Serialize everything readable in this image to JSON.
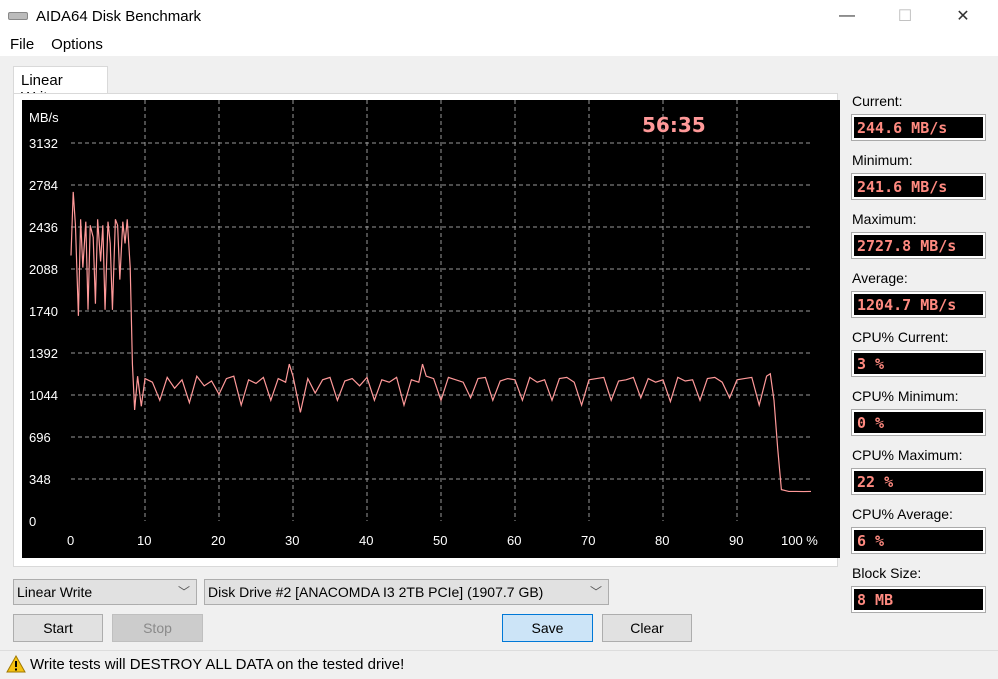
{
  "window": {
    "title": "AIDA64 Disk Benchmark",
    "minimize": "—",
    "maximize": "☐",
    "close": "✕"
  },
  "menu": [
    "File",
    "Options"
  ],
  "tab": "Linear Write",
  "chart_data": {
    "type": "line",
    "ylabel": "MB/s",
    "timer": "56:35",
    "ylim": [
      0,
      3132
    ],
    "xlim": [
      0,
      100
    ],
    "yticks": [
      "0",
      "348",
      "696",
      "1044",
      "1392",
      "1740",
      "2088",
      "2436",
      "2784",
      "3132"
    ],
    "xticks": [
      "0",
      "10",
      "20",
      "30",
      "40",
      "50",
      "60",
      "70",
      "80",
      "90",
      "100 %"
    ],
    "grid": true,
    "line_color": "#ff9999",
    "x": [
      0,
      0.3,
      0.6,
      1,
      1.3,
      1.6,
      2,
      2.3,
      2.6,
      3,
      3.3,
      3.6,
      4,
      4.3,
      4.6,
      5,
      5.3,
      5.6,
      6,
      6.3,
      6.6,
      7,
      7.3,
      7.6,
      8,
      8.3,
      8.6,
      9,
      9.5,
      10,
      11,
      12,
      13,
      14,
      15,
      16,
      17,
      18,
      19,
      20,
      21,
      22,
      23,
      24,
      25,
      26,
      27,
      28,
      29,
      29.5,
      30,
      31,
      32,
      33,
      34,
      35,
      36,
      37,
      38,
      39,
      40,
      41,
      42,
      43,
      44,
      45,
      46,
      47,
      47.5,
      48,
      49,
      50,
      51,
      52,
      53,
      54,
      55,
      56,
      57,
      58,
      59,
      60,
      61,
      62,
      63,
      64,
      65,
      66,
      67,
      68,
      69,
      70,
      71,
      72,
      73,
      74,
      75,
      76,
      77,
      78,
      79,
      80,
      81,
      82,
      83,
      84,
      85,
      86,
      87,
      88,
      89,
      90,
      91,
      92,
      93,
      94,
      94.5,
      95,
      95.5,
      96,
      97,
      98,
      99,
      100
    ],
    "y": [
      2200,
      2727,
      2450,
      1700,
      2500,
      2100,
      2480,
      1750,
      2450,
      2350,
      1800,
      2500,
      2150,
      2450,
      1750,
      2480,
      2300,
      1750,
      2500,
      2450,
      2000,
      2480,
      2300,
      2500,
      2100,
      1300,
      920,
      1200,
      950,
      1180,
      1150,
      1000,
      1190,
      1100,
      1170,
      980,
      1200,
      1120,
      1160,
      1050,
      1180,
      1200,
      960,
      1170,
      1140,
      1190,
      1000,
      1180,
      1150,
      1300,
      1200,
      900,
      1180,
      1060,
      1170,
      1190,
      1000,
      1160,
      1180,
      1120,
      1190,
      1000,
      1170,
      1150,
      1190,
      960,
      1170,
      1150,
      1300,
      1200,
      1180,
      1000,
      1190,
      1170,
      1150,
      1020,
      1180,
      1190,
      1000,
      1160,
      1180,
      1170,
      1000,
      1190,
      1150,
      1170,
      1000,
      1180,
      1190,
      1150,
      960,
      1170,
      1180,
      1190,
      1000,
      1160,
      1170,
      1190,
      1020,
      1180,
      1150,
      1170,
      990,
      1190,
      1160,
      1170,
      1000,
      1180,
      1190,
      1150,
      1020,
      1170,
      1180,
      1190,
      960,
      1200,
      1220,
      1000,
      600,
      260,
      245,
      245,
      244,
      245
    ]
  },
  "stats": [
    {
      "label": "Current:",
      "value": "244.6 MB/s"
    },
    {
      "label": "Minimum:",
      "value": "241.6 MB/s"
    },
    {
      "label": "Maximum:",
      "value": "2727.8 MB/s"
    },
    {
      "label": "Average:",
      "value": "1204.7 MB/s"
    },
    {
      "label": "CPU% Current:",
      "value": "3 %"
    },
    {
      "label": "CPU% Minimum:",
      "value": "0 %"
    },
    {
      "label": "CPU% Maximum:",
      "value": "22 %"
    },
    {
      "label": "CPU% Average:",
      "value": "6 %"
    },
    {
      "label": "Block Size:",
      "value": "8 MB"
    }
  ],
  "controls": {
    "test": "Linear Write",
    "drive": "Disk Drive #2  [ANACOMDA I3 2TB PCIe]  (1907.7 GB)",
    "start": "Start",
    "stop": "Stop",
    "save": "Save",
    "clear": "Clear"
  },
  "status": {
    "warning_icon": "warning-triangle",
    "text": "Write tests will DESTROY ALL DATA on the tested drive!"
  }
}
